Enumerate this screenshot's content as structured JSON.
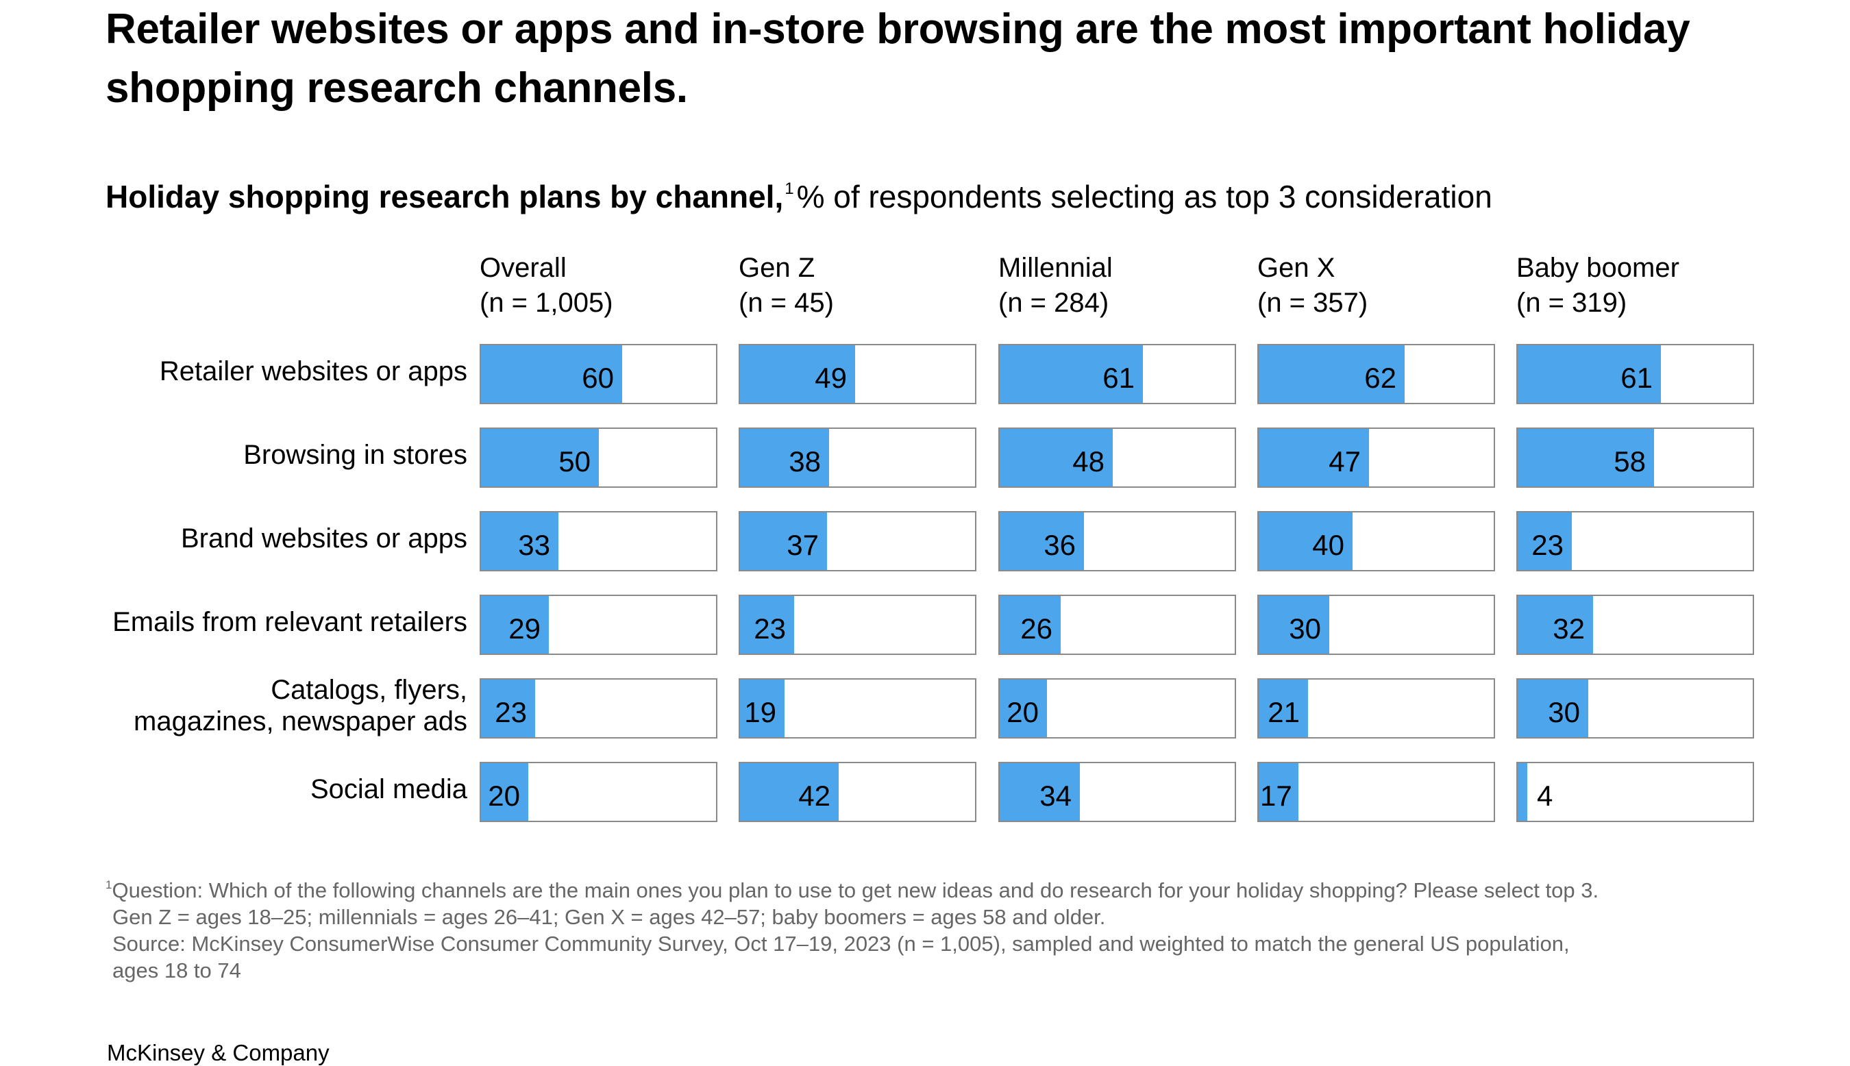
{
  "title": "Retailer websites or apps and in-store browsing are the most important holiday shopping research channels.",
  "subtitle": {
    "bold": "Holiday shopping research plans by channel,",
    "footnote_marker": "1",
    "rest": "% of respondents selecting as top 3 consideration"
  },
  "colors": {
    "bar": "#4da6ec",
    "track_border": "#8a8a8a",
    "footnote_text": "#666666"
  },
  "chart_data": {
    "type": "bar",
    "orientation": "horizontal",
    "title": "Holiday shopping research plans by channel",
    "unit": "% of respondents selecting as top 3 consideration",
    "xlim": [
      0,
      100
    ],
    "grid": false,
    "categories": [
      "Retailer websites or apps",
      "Browsing in stores",
      "Brand websites or apps",
      "Emails from relevant retailers",
      "Catalogs, flyers, magazines, newspaper ads",
      "Social media"
    ],
    "category_lines": [
      [
        "Retailer websites or apps"
      ],
      [
        "Browsing in stores"
      ],
      [
        "Brand websites or apps"
      ],
      [
        "Emails from relevant retailers"
      ],
      [
        "Catalogs, flyers,",
        "magazines, newspaper ads"
      ],
      [
        "Social media"
      ]
    ],
    "series": [
      {
        "name": "Overall",
        "n_label": "(n = 1,005)",
        "values": [
          60,
          50,
          33,
          29,
          23,
          20
        ]
      },
      {
        "name": "Gen Z",
        "n_label": "(n = 45)",
        "values": [
          49,
          38,
          37,
          23,
          19,
          42
        ]
      },
      {
        "name": "Millennial",
        "n_label": "(n = 284)",
        "values": [
          61,
          48,
          36,
          26,
          20,
          34
        ]
      },
      {
        "name": "Gen X",
        "n_label": "(n = 357)",
        "values": [
          62,
          47,
          40,
          30,
          21,
          17
        ]
      },
      {
        "name": "Baby boomer",
        "n_label": "(n = 319)",
        "values": [
          61,
          58,
          23,
          32,
          30,
          4
        ]
      }
    ]
  },
  "footnote": {
    "marker": "1",
    "lines": [
      "Question: Which of the following channels are the main ones you plan to use to get new ideas and do research for your holiday shopping? Please select top 3.",
      "Gen Z = ages 18–25; millennials = ages 26–41; Gen X = ages 42–57; baby boomers = ages 58 and older.",
      "Source: McKinsey ConsumerWise Consumer Community Survey, Oct 17–19, 2023 (n = 1,005), sampled and weighted to match the general US population,",
      "ages 18 to 74"
    ]
  },
  "footer": "McKinsey & Company"
}
